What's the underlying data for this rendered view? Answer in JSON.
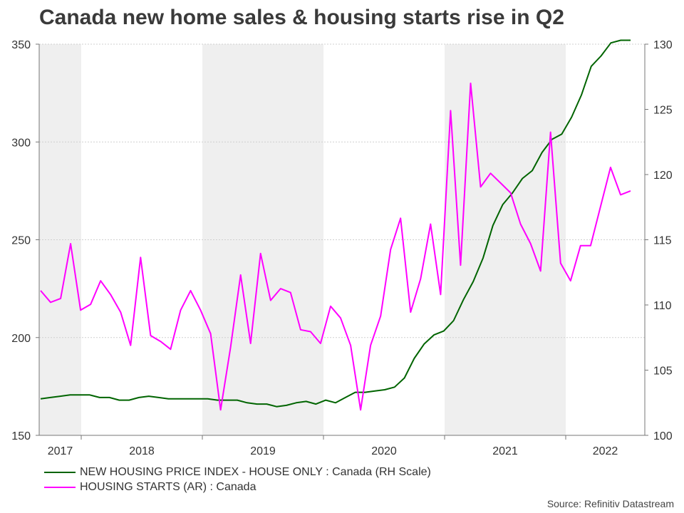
{
  "chart_data": {
    "type": "line",
    "title": "Canada new home sales & housing starts rise in Q2",
    "source": "Source: Refinitiv Datastream",
    "x_labels": [
      "2017",
      "2018",
      "2019",
      "2020",
      "2021",
      "2022"
    ],
    "left_axis": {
      "ylim": [
        150,
        350
      ],
      "ticks": [
        150,
        200,
        250,
        300,
        350
      ]
    },
    "right_axis": {
      "ylim": [
        100,
        130
      ],
      "ticks": [
        100,
        105,
        110,
        115,
        120,
        125,
        130
      ]
    },
    "shaded_years": [
      "2017",
      "2019",
      "2021"
    ],
    "series": [
      {
        "name": "NEW HOUSING PRICE INDEX - HOUSE ONLY : Canada (RH Scale)",
        "axis": "right",
        "color": "#006400",
        "values": [
          102.8,
          102.9,
          103.0,
          103.1,
          103.1,
          103.1,
          102.9,
          102.9,
          102.7,
          102.7,
          102.9,
          103.0,
          102.9,
          102.8,
          102.8,
          102.8,
          102.8,
          102.8,
          102.7,
          102.7,
          102.7,
          102.5,
          102.4,
          102.4,
          102.2,
          102.3,
          102.5,
          102.6,
          102.4,
          102.7,
          102.5,
          102.9,
          103.3,
          103.3,
          103.4,
          103.5,
          103.7,
          104.4,
          105.9,
          107.0,
          107.7,
          108.0,
          108.8,
          110.4,
          111.8,
          113.6,
          116.1,
          117.7,
          118.6,
          119.7,
          120.3,
          121.7,
          122.7,
          123.1,
          124.4,
          126.1,
          128.3,
          129.1,
          130.1,
          130.3,
          130.3
        ]
      },
      {
        "name": "HOUSING STARTS (AR) : Canada",
        "axis": "left",
        "color": "#ff00ff",
        "values": [
          224,
          218,
          220,
          248,
          214,
          217,
          229,
          222,
          213,
          196,
          241,
          201,
          198,
          194,
          214,
          224,
          214,
          202,
          163,
          195,
          232,
          197,
          243,
          219,
          225,
          223,
          204,
          203,
          197,
          216,
          210,
          196,
          163,
          196,
          211,
          245,
          261,
          213,
          230,
          258,
          222,
          316,
          237,
          330,
          277,
          284,
          279,
          274,
          258,
          248,
          234,
          305,
          238,
          229,
          247,
          247,
          267,
          287,
          273,
          275
        ]
      }
    ]
  }
}
